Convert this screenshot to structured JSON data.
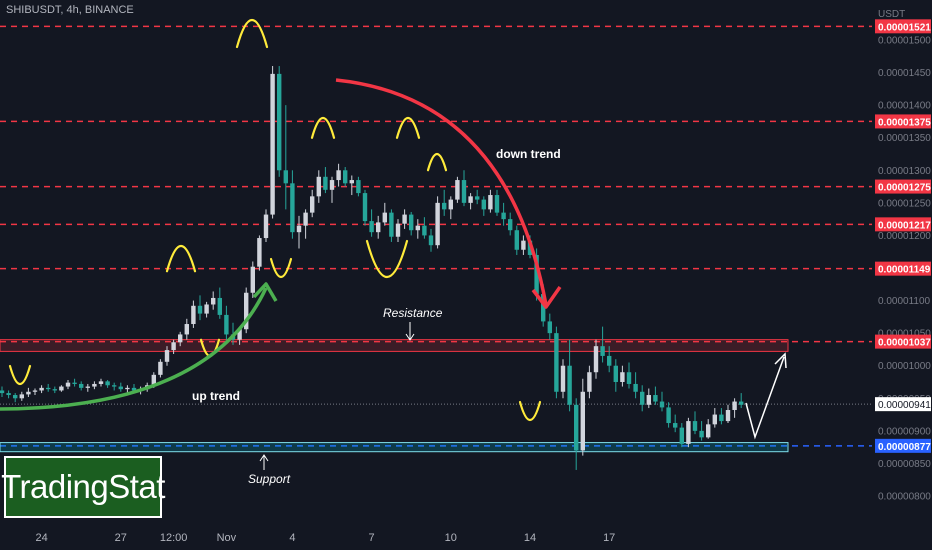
{
  "header": {
    "symbol_label": "SHIBUSDT, 4h, BINANCE"
  },
  "price_axis": {
    "unit_label": "USDT",
    "ticks": [
      "0.00001500",
      "0.00001450",
      "0.00001400",
      "0.00001350",
      "0.00001300",
      "0.00001250",
      "0.00001200",
      "0.00001150",
      "0.00001100",
      "0.00001050",
      "0.00001000",
      "0.00000950",
      "0.00000900",
      "0.00000850",
      "0.00000800"
    ]
  },
  "time_axis": {
    "labels": [
      {
        "text": "24",
        "t": 6
      },
      {
        "text": "27",
        "t": 18
      },
      {
        "text": "12:00",
        "t": 26
      },
      {
        "text": "Nov",
        "t": 34
      },
      {
        "text": "4",
        "t": 44
      },
      {
        "text": "7",
        "t": 56
      },
      {
        "text": "10",
        "t": 68
      },
      {
        "text": "14",
        "t": 80
      },
      {
        "text": "17",
        "t": 92
      }
    ]
  },
  "logo": {
    "text": "TradingStat"
  },
  "colors": {
    "background": "#131722",
    "bull": "#d1d4dc",
    "bear": "#26a69a",
    "level_line": "#f23645",
    "support_line": "#2962ff",
    "highlight": "#ffeb3b",
    "uptrend_arrow": "#4caf50",
    "downtrend_arrow": "#f23645",
    "logo_bg": "#1b5e20"
  },
  "chart_data": {
    "type": "candlestick",
    "title": "SHIBUSDT, 4h, BINANCE",
    "y_unit": "USDT",
    "ylim": [
      7.7e-06,
      1.57e-05
    ],
    "grid": false,
    "horizontal_levels": [
      {
        "price": 1.521e-05,
        "label": "0.00001521"
      },
      {
        "price": 1.375e-05,
        "label": "0.00001375"
      },
      {
        "price": 1.275e-05,
        "label": "0.00001275"
      },
      {
        "price": 1.217e-05,
        "label": "0.00001217"
      },
      {
        "price": 1.149e-05,
        "label": "0.00001149"
      },
      {
        "price": 1.037e-05,
        "label": "0.00001037"
      },
      {
        "price": 8.77e-06,
        "label": "0.00000877"
      }
    ],
    "current_price": {
      "price": 9.41e-06,
      "label": "0.00000941"
    },
    "zones": [
      {
        "name": "Resistance",
        "low": 1.022e-05,
        "high": 1.04e-05
      },
      {
        "name": "Support",
        "low": 8.68e-06,
        "high": 8.82e-06
      }
    ],
    "annotations": [
      "up trend",
      "down trend",
      "Resistance",
      "Support"
    ],
    "candles_ohlc_e8": [
      [
        962,
        968,
        952,
        958
      ],
      [
        958,
        962,
        950,
        955
      ],
      [
        955,
        958,
        944,
        950
      ],
      [
        950,
        960,
        946,
        956
      ],
      [
        956,
        966,
        952,
        960
      ],
      [
        960,
        965,
        955,
        962
      ],
      [
        962,
        970,
        958,
        966
      ],
      [
        966,
        972,
        960,
        964
      ],
      [
        964,
        968,
        958,
        962
      ],
      [
        962,
        970,
        960,
        968
      ],
      [
        968,
        978,
        964,
        974
      ],
      [
        974,
        980,
        968,
        972
      ],
      [
        972,
        976,
        962,
        966
      ],
      [
        966,
        972,
        960,
        968
      ],
      [
        968,
        976,
        964,
        972
      ],
      [
        972,
        980,
        968,
        976
      ],
      [
        976,
        978,
        966,
        970
      ],
      [
        970,
        974,
        962,
        968
      ],
      [
        968,
        974,
        960,
        964
      ],
      [
        964,
        970,
        958,
        966
      ],
      [
        966,
        972,
        960,
        962
      ],
      [
        962,
        968,
        956,
        964
      ],
      [
        964,
        974,
        960,
        970
      ],
      [
        970,
        990,
        966,
        986
      ],
      [
        986,
        1010,
        982,
        1006
      ],
      [
        1006,
        1030,
        1000,
        1024
      ],
      [
        1024,
        1040,
        1018,
        1036
      ],
      [
        1036,
        1052,
        1030,
        1048
      ],
      [
        1048,
        1072,
        1040,
        1064
      ],
      [
        1064,
        1100,
        1058,
        1092
      ],
      [
        1092,
        1108,
        1070,
        1080
      ],
      [
        1080,
        1098,
        1074,
        1094
      ],
      [
        1094,
        1114,
        1086,
        1104
      ],
      [
        1104,
        1120,
        1072,
        1078
      ],
      [
        1078,
        1092,
        1040,
        1048
      ],
      [
        1048,
        1066,
        1032,
        1040
      ],
      [
        1040,
        1060,
        1032,
        1056
      ],
      [
        1056,
        1120,
        1050,
        1112
      ],
      [
        1112,
        1160,
        1104,
        1152
      ],
      [
        1152,
        1200,
        1146,
        1196
      ],
      [
        1196,
        1240,
        1190,
        1232
      ],
      [
        1232,
        1460,
        1226,
        1448
      ],
      [
        1448,
        1460,
        1290,
        1300
      ],
      [
        1300,
        1400,
        1240,
        1280
      ],
      [
        1280,
        1300,
        1195,
        1205
      ],
      [
        1205,
        1230,
        1180,
        1215
      ],
      [
        1215,
        1240,
        1195,
        1235
      ],
      [
        1235,
        1270,
        1228,
        1260
      ],
      [
        1260,
        1300,
        1250,
        1290
      ],
      [
        1290,
        1305,
        1265,
        1270
      ],
      [
        1270,
        1290,
        1250,
        1285
      ],
      [
        1285,
        1310,
        1275,
        1300
      ],
      [
        1300,
        1305,
        1275,
        1280
      ],
      [
        1280,
        1292,
        1262,
        1285
      ],
      [
        1285,
        1290,
        1260,
        1265
      ],
      [
        1265,
        1270,
        1215,
        1222
      ],
      [
        1222,
        1240,
        1198,
        1205
      ],
      [
        1205,
        1230,
        1195,
        1220
      ],
      [
        1220,
        1250,
        1215,
        1235
      ],
      [
        1235,
        1240,
        1190,
        1198
      ],
      [
        1198,
        1225,
        1190,
        1218
      ],
      [
        1218,
        1240,
        1210,
        1232
      ],
      [
        1232,
        1236,
        1200,
        1208
      ],
      [
        1208,
        1225,
        1195,
        1215
      ],
      [
        1215,
        1228,
        1195,
        1200
      ],
      [
        1200,
        1210,
        1175,
        1185
      ],
      [
        1185,
        1260,
        1180,
        1250
      ],
      [
        1250,
        1270,
        1230,
        1240
      ],
      [
        1240,
        1260,
        1225,
        1255
      ],
      [
        1255,
        1290,
        1250,
        1285
      ],
      [
        1285,
        1300,
        1245,
        1250
      ],
      [
        1250,
        1265,
        1240,
        1260
      ],
      [
        1260,
        1270,
        1248,
        1255
      ],
      [
        1255,
        1260,
        1230,
        1240
      ],
      [
        1240,
        1270,
        1235,
        1262
      ],
      [
        1262,
        1270,
        1230,
        1235
      ],
      [
        1235,
        1250,
        1215,
        1225
      ],
      [
        1225,
        1235,
        1200,
        1208
      ],
      [
        1208,
        1215,
        1170,
        1178
      ],
      [
        1178,
        1200,
        1170,
        1192
      ],
      [
        1192,
        1200,
        1165,
        1170
      ],
      [
        1170,
        1180,
        1100,
        1110
      ],
      [
        1110,
        1125,
        1060,
        1068
      ],
      [
        1068,
        1080,
        1040,
        1050
      ],
      [
        1050,
        1060,
        950,
        960
      ],
      [
        960,
        1010,
        950,
        1000
      ],
      [
        1000,
        1040,
        930,
        940
      ],
      [
        940,
        950,
        840,
        870
      ],
      [
        870,
        980,
        862,
        960
      ],
      [
        960,
        1000,
        950,
        990
      ],
      [
        990,
        1040,
        980,
        1030
      ],
      [
        1030,
        1060,
        1005,
        1015
      ],
      [
        1015,
        1030,
        990,
        1000
      ],
      [
        1000,
        1010,
        960,
        975
      ],
      [
        975,
        1000,
        968,
        990
      ],
      [
        990,
        1005,
        965,
        972
      ],
      [
        972,
        990,
        950,
        960
      ],
      [
        960,
        970,
        930,
        940
      ],
      [
        940,
        965,
        935,
        955
      ],
      [
        955,
        968,
        940,
        945
      ],
      [
        945,
        960,
        930,
        936
      ],
      [
        936,
        944,
        905,
        912
      ],
      [
        912,
        925,
        898,
        905
      ],
      [
        905,
        912,
        875,
        880
      ],
      [
        880,
        920,
        875,
        915
      ],
      [
        915,
        930,
        895,
        900
      ],
      [
        900,
        915,
        885,
        890
      ],
      [
        890,
        918,
        888,
        910
      ],
      [
        910,
        935,
        905,
        925
      ],
      [
        925,
        935,
        910,
        915
      ],
      [
        915,
        940,
        912,
        932
      ],
      [
        932,
        950,
        920,
        945
      ],
      [
        945,
        958,
        935,
        940
      ]
    ]
  }
}
